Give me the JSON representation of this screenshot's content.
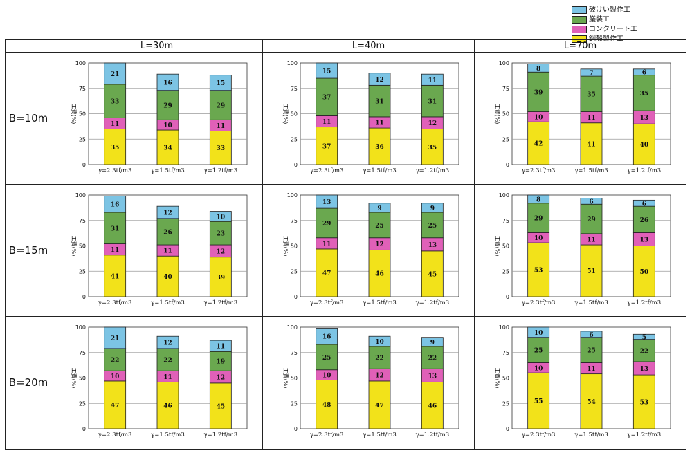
{
  "colors": {
    "rock": "#7cc4e4",
    "equip": "#6aa84f",
    "concrete": "#e060b8",
    "steel": "#f2e21a"
  },
  "legend": [
    {
      "label": "破けい製作工",
      "color_key": "rock"
    },
    {
      "label": "艤装工",
      "color_key": "equip"
    },
    {
      "label": "コンクリート工",
      "color_key": "concrete"
    },
    {
      "label": "鋼殻製作工",
      "color_key": "steel"
    }
  ],
  "column_headers": [
    "L=30m",
    "L=40m",
    "L=70m"
  ],
  "row_headers": [
    "B=10m",
    "B=15m",
    "B=20m"
  ],
  "chart_data": [
    {
      "type": "bar",
      "stacked": true,
      "row": "B=10m",
      "col": "L=30m",
      "ylabel": "工費(%)",
      "ylim": [
        0,
        100
      ],
      "yticks": [
        0,
        25,
        50,
        75,
        100
      ],
      "categories": [
        "γ=2.3tf/m3",
        "γ=1.5tf/m3",
        "γ=1.2tf/m3"
      ],
      "series": [
        {
          "name": "鋼殻製作工",
          "values": [
            35,
            34,
            33
          ]
        },
        {
          "name": "コンクリート工",
          "values": [
            11,
            10,
            11
          ]
        },
        {
          "name": "艤装工",
          "values": [
            33,
            29,
            29
          ]
        },
        {
          "name": "破けい製作工",
          "values": [
            21,
            16,
            15
          ]
        }
      ]
    },
    {
      "type": "bar",
      "stacked": true,
      "row": "B=10m",
      "col": "L=40m",
      "ylabel": "工費(%)",
      "ylim": [
        0,
        100
      ],
      "yticks": [
        0,
        25,
        50,
        75,
        100
      ],
      "categories": [
        "γ=2.3tf/m3",
        "γ=1.5tf/m3",
        "γ=1.2tf/m3"
      ],
      "series": [
        {
          "name": "鋼殻製作工",
          "values": [
            37,
            36,
            35
          ]
        },
        {
          "name": "コンクリート工",
          "values": [
            11,
            11,
            12
          ]
        },
        {
          "name": "艤装工",
          "values": [
            37,
            31,
            31
          ]
        },
        {
          "name": "破けい製作工",
          "values": [
            15,
            12,
            11
          ]
        }
      ]
    },
    {
      "type": "bar",
      "stacked": true,
      "row": "B=10m",
      "col": "L=70m",
      "ylabel": "工費(%)",
      "ylim": [
        0,
        100
      ],
      "yticks": [
        0,
        25,
        50,
        75,
        100
      ],
      "categories": [
        "γ=2.3tf/m3",
        "γ=1.5tf/m3",
        "γ=1.2tf/m3"
      ],
      "series": [
        {
          "name": "鋼殻製作工",
          "values": [
            42,
            41,
            40
          ]
        },
        {
          "name": "コンクリート工",
          "values": [
            10,
            11,
            13
          ]
        },
        {
          "name": "艤装工",
          "values": [
            39,
            35,
            35
          ]
        },
        {
          "name": "破けい製作工",
          "values": [
            8,
            7,
            6
          ]
        }
      ]
    },
    {
      "type": "bar",
      "stacked": true,
      "row": "B=15m",
      "col": "L=30m",
      "ylabel": "工費(%)",
      "ylim": [
        0,
        100
      ],
      "yticks": [
        0,
        25,
        50,
        75,
        100
      ],
      "categories": [
        "γ=2.3tf/m3",
        "γ=1.5tf/m3",
        "γ=1.2tf/m3"
      ],
      "series": [
        {
          "name": "鋼殻製作工",
          "values": [
            41,
            40,
            39
          ]
        },
        {
          "name": "コンクリート工",
          "values": [
            11,
            11,
            12
          ]
        },
        {
          "name": "艤装工",
          "values": [
            31,
            26,
            23
          ]
        },
        {
          "name": "破けい製作工",
          "values": [
            16,
            12,
            10
          ]
        }
      ]
    },
    {
      "type": "bar",
      "stacked": true,
      "row": "B=15m",
      "col": "L=40m",
      "ylabel": "工費(%)",
      "ylim": [
        0,
        100
      ],
      "yticks": [
        0,
        25,
        50,
        75,
        100
      ],
      "categories": [
        "γ=2.3tf/m3",
        "γ=1.5tf/m3",
        "γ=1.2tf/m3"
      ],
      "series": [
        {
          "name": "鋼殻製作工",
          "values": [
            47,
            46,
            45
          ]
        },
        {
          "name": "コンクリート工",
          "values": [
            11,
            12,
            13
          ]
        },
        {
          "name": "艤装工",
          "values": [
            29,
            25,
            25
          ]
        },
        {
          "name": "破けい製作工",
          "values": [
            13,
            9,
            9
          ]
        }
      ]
    },
    {
      "type": "bar",
      "stacked": true,
      "row": "B=15m",
      "col": "L=70m",
      "ylabel": "工費(%)",
      "ylim": [
        0,
        100
      ],
      "yticks": [
        0,
        25,
        50,
        75,
        100
      ],
      "categories": [
        "γ=2.3tf/m3",
        "γ=1.5tf/m3",
        "γ=1.2tf/m3"
      ],
      "series": [
        {
          "name": "鋼殻製作工",
          "values": [
            53,
            51,
            50
          ]
        },
        {
          "name": "コンクリート工",
          "values": [
            10,
            11,
            13
          ]
        },
        {
          "name": "艤装工",
          "values": [
            29,
            29,
            26
          ]
        },
        {
          "name": "破けい製作工",
          "values": [
            8,
            6,
            6
          ]
        }
      ]
    },
    {
      "type": "bar",
      "stacked": true,
      "row": "B=20m",
      "col": "L=30m",
      "ylabel": "工費(%)",
      "ylim": [
        0,
        100
      ],
      "yticks": [
        0,
        25,
        50,
        75,
        100
      ],
      "categories": [
        "γ=2.3tf/m3",
        "γ=1.5tf/m3",
        "γ=1.2tf/m3"
      ],
      "series": [
        {
          "name": "鋼殻製作工",
          "values": [
            47,
            46,
            45
          ]
        },
        {
          "name": "コンクリート工",
          "values": [
            10,
            11,
            12
          ]
        },
        {
          "name": "艤装工",
          "values": [
            22,
            22,
            19
          ]
        },
        {
          "name": "破けい製作工",
          "values": [
            21,
            12,
            11
          ]
        }
      ]
    },
    {
      "type": "bar",
      "stacked": true,
      "row": "B=20m",
      "col": "L=40m",
      "ylabel": "工費(%)",
      "ylim": [
        0,
        100
      ],
      "yticks": [
        0,
        25,
        50,
        75,
        100
      ],
      "categories": [
        "γ=2.3tf/m3",
        "γ=1.5tf/m3",
        "γ=1.2tf/m3"
      ],
      "series": [
        {
          "name": "鋼殻製作工",
          "values": [
            48,
            47,
            46
          ]
        },
        {
          "name": "コンクリート工",
          "values": [
            10,
            12,
            13
          ]
        },
        {
          "name": "艤装工",
          "values": [
            25,
            22,
            22
          ]
        },
        {
          "name": "破けい製作工",
          "values": [
            16,
            10,
            9
          ]
        }
      ]
    },
    {
      "type": "bar",
      "stacked": true,
      "row": "B=20m",
      "col": "L=70m",
      "ylabel": "工費(%)",
      "ylim": [
        0,
        100
      ],
      "yticks": [
        0,
        25,
        50,
        75,
        100
      ],
      "categories": [
        "γ=2.3tf/m3",
        "γ=1.5tf/m3",
        "γ=1.2tf/m3"
      ],
      "series": [
        {
          "name": "鋼殻製作工",
          "values": [
            55,
            54,
            53
          ]
        },
        {
          "name": "コンクリート工",
          "values": [
            10,
            11,
            13
          ]
        },
        {
          "name": "艤装工",
          "values": [
            25,
            25,
            22
          ]
        },
        {
          "name": "破けい製作工",
          "values": [
            10,
            6,
            5
          ]
        }
      ]
    }
  ]
}
